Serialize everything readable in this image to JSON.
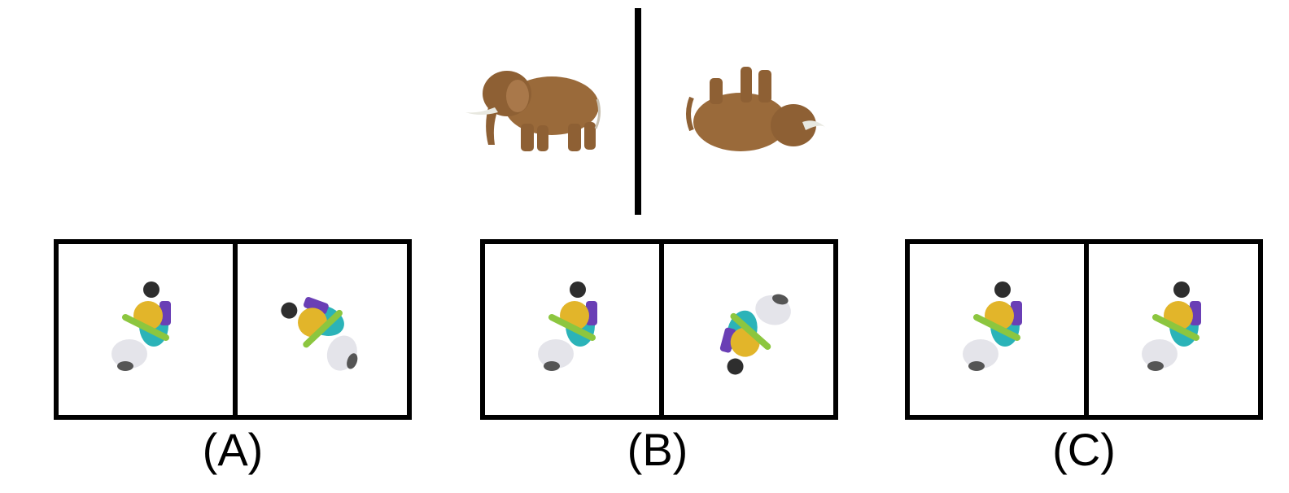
{
  "example": {
    "left_icon": "elephant-side-view",
    "right_icon": "elephant-rotated-view"
  },
  "options": [
    {
      "label": "(A)",
      "left_icon": "rider-on-scooter-top-view",
      "right_icon": "rider-on-scooter-rotated"
    },
    {
      "label": "(B)",
      "left_icon": "rider-on-scooter-top-view",
      "right_icon": "rider-on-scooter-rotated"
    },
    {
      "label": "(C)",
      "left_icon": "rider-on-scooter-top-view",
      "right_icon": "rider-on-scooter-top-view"
    }
  ],
  "colors": {
    "elephant": "#9a6a3a",
    "tusk": "#e8e8e0",
    "rider_shirt": "#e2b52a",
    "scooter_body": "#e4e4ea",
    "accent_teal": "#2bb3b8",
    "accent_green": "#8cc63f",
    "accent_purple": "#6a3fb5",
    "hair": "#2e2e2e"
  }
}
